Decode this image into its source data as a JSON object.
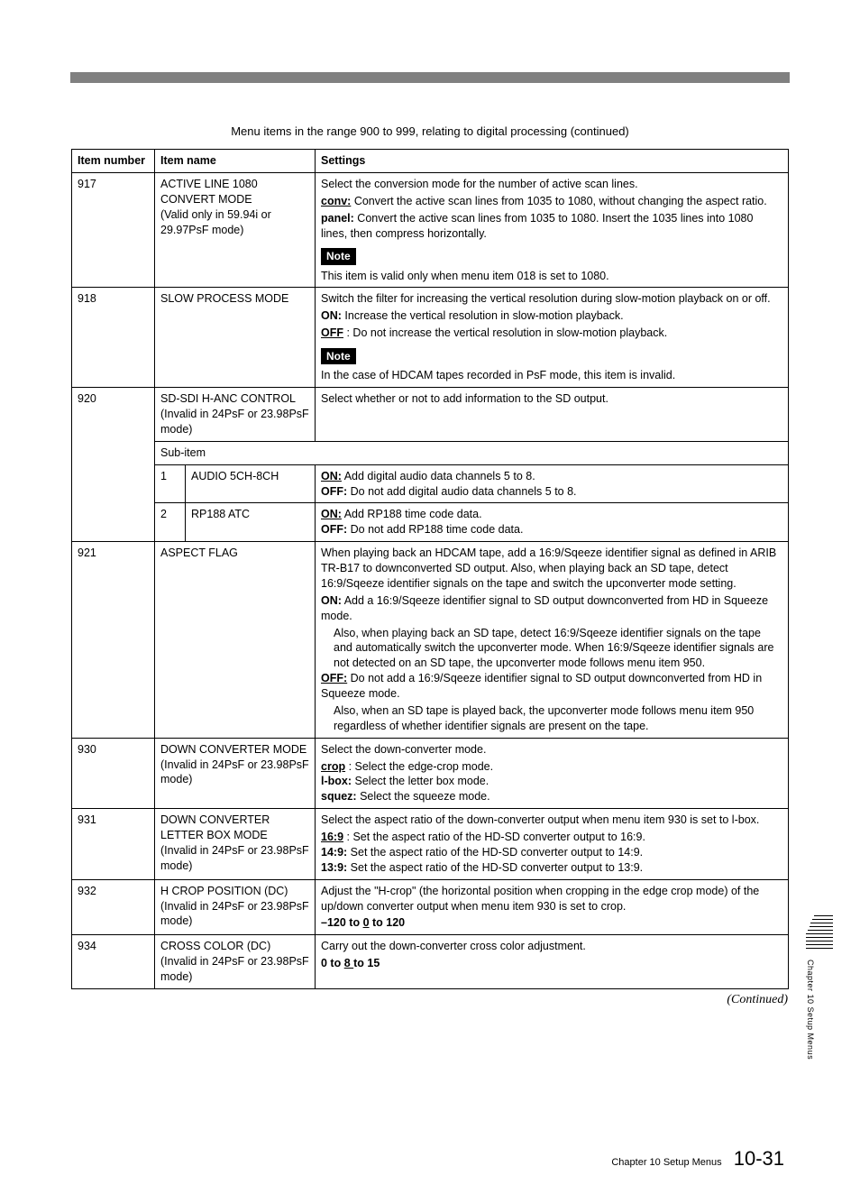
{
  "caption": "Menu items in the range 900 to 999, relating to digital processing (continued)",
  "headers": {
    "num": "Item number",
    "name": "Item name",
    "settings": "Settings"
  },
  "note_label": "Note",
  "subitem_label": "Sub-item",
  "continued": "(Continued)",
  "footer_chapter": "Chapter 10  Setup Menus",
  "footer_page": "10-31",
  "side_text": "Chapter 10   Setup Menus",
  "rows": {
    "r917": {
      "num": "917",
      "name_l1": "ACTIVE LINE 1080 CONVERT MODE",
      "name_l2": "(Valid only in 59.94i or 29.97PsF mode)",
      "s_intro": "Select the conversion mode for the number of active scan lines.",
      "s_conv_lbl": "conv:",
      "s_conv_txt": " Convert the active scan lines from 1035 to 1080, without changing the aspect ratio.",
      "s_panel_lbl": "panel:",
      "s_panel_txt": " Convert the active scan lines from 1035 to 1080. Insert the 1035 lines into 1080 lines, then compress horizontally.",
      "s_note": "This item is valid only when menu item 018 is set to 1080."
    },
    "r918": {
      "num": "918",
      "name": "SLOW PROCESS MODE",
      "s_intro": "Switch the filter for increasing the vertical resolution during slow-motion playback on or off.",
      "s_on_lbl": "ON:",
      "s_on_txt": " Increase the vertical resolution in slow-motion playback.",
      "s_off_lbl": "OFF",
      "s_off_txt": " : Do not increase the vertical resolution in slow-motion playback.",
      "s_note": "In the case of HDCAM tapes recorded in PsF mode, this item is invalid."
    },
    "r920": {
      "num": "920",
      "name_l1": "SD-SDI H-ANC CONTROL",
      "name_l2": "(Invalid in 24PsF or 23.98PsF mode)",
      "s_intro": "Select whether or not to add information to the SD output.",
      "sub1_num": "1",
      "sub1_name": "AUDIO 5CH-8CH",
      "sub1_on_lbl": "ON:",
      "sub1_on_txt": " Add digital audio data channels 5 to 8.",
      "sub1_off_lbl": "OFF:",
      "sub1_off_txt": " Do not add digital audio data channels 5 to 8.",
      "sub2_num": "2",
      "sub2_name": "RP188 ATC",
      "sub2_on_lbl": "ON:",
      "sub2_on_txt": " Add RP188 time code data.",
      "sub2_off_lbl": "OFF:",
      "sub2_off_txt": " Do not add RP188 time code data."
    },
    "r921": {
      "num": "921",
      "name": "ASPECT FLAG",
      "s_p1": "When playing back an HDCAM tape, add a 16:9/Sqeeze identifier signal as defined in ARIB TR-B17 to downconverted SD output. Also, when playing back an SD tape, detect 16:9/Sqeeze identifier signals on the tape and switch the upconverter mode setting.",
      "s_on_lbl": "ON:",
      "s_on_txt": " Add a 16:9/Sqeeze identifier signal to SD output downconverted from HD in Squeeze mode.",
      "s_on_p2": "Also, when playing back an SD tape, detect 16:9/Sqeeze identifier signals on the tape and automatically switch the upconverter mode. When 16:9/Sqeeze identifier signals are not detected on an SD tape, the upconverter mode follows menu item 950.",
      "s_off_lbl": "OFF:",
      "s_off_txt": " Do not add a 16:9/Sqeeze identifier signal to SD output downconverted from HD in Squeeze mode.",
      "s_off_p2": "Also, when an SD tape is played back, the upconverter mode follows menu item 950 regardless of whether identifier signals are present on the tape."
    },
    "r930": {
      "num": "930",
      "name_l1": "DOWN CONVERTER MODE",
      "name_l2": "(Invalid in 24PsF or 23.98PsF mode)",
      "s_intro": "Select the down-converter mode.",
      "s_crop_lbl": "crop",
      "s_crop_txt": " : Select the edge-crop mode.",
      "s_lbox_lbl": "l-box:",
      "s_lbox_txt": " Select the letter box mode.",
      "s_squez_lbl": "squez:",
      "s_squez_txt": " Select the squeeze mode."
    },
    "r931": {
      "num": "931",
      "name_l1": "DOWN CONVERTER LETTER BOX MODE",
      "name_l2": "(Invalid in 24PsF or 23.98PsF mode)",
      "s_intro": "Select the aspect ratio of the down-converter output when menu item 930 is set to l-box.",
      "s_169_lbl": "16:9",
      "s_169_txt": " : Set the aspect ratio of the HD-SD converter output to 16:9.",
      "s_149_lbl": "14:9:",
      "s_149_txt": " Set the aspect ratio of the HD-SD converter output to 14:9.",
      "s_139_lbl": "13:9:",
      "s_139_txt": " Set the aspect ratio of the HD-SD converter output to 13:9."
    },
    "r932": {
      "num": "932",
      "name_l1": "H CROP POSITION (DC)",
      "name_l2": "(Invalid in 24PsF or 23.98PsF mode)",
      "s_intro": "Adjust the \"H-crop\" (the horizontal position when cropping in the edge crop mode) of the up/down converter output when menu item 930 is set to crop.",
      "s_range_a": "–120 to ",
      "s_range_b": "0",
      "s_range_c": " to 120"
    },
    "r934": {
      "num": "934",
      "name_l1": "CROSS COLOR (DC)",
      "name_l2": "(Invalid in 24PsF or 23.98PsF mode)",
      "s_intro": "Carry out the down-converter cross color adjustment.",
      "s_range_a": "0 to ",
      "s_range_b": " 8 ",
      "s_range_c": " to 15"
    }
  }
}
